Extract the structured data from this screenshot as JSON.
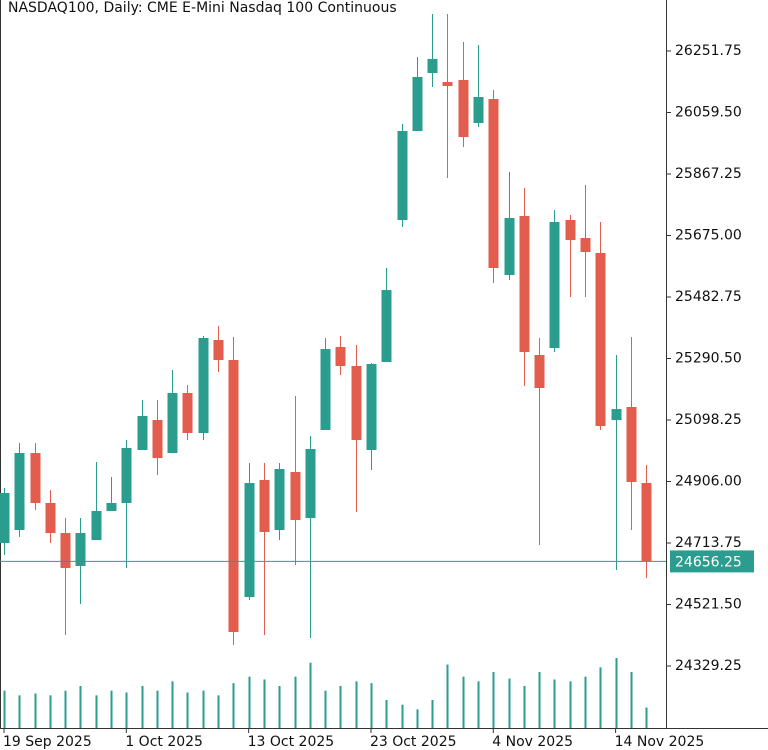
{
  "chart_data": {
    "type": "candlestick",
    "title": "NASDAQ100, Daily:  CME E-Mini Nasdaq 100 Continuous",
    "categories": [
      "19 Sep 2025",
      null,
      null,
      null,
      null,
      null,
      null,
      null,
      "1 Oct 2025",
      null,
      null,
      null,
      null,
      null,
      null,
      null,
      "13 Oct 2025",
      null,
      null,
      null,
      null,
      null,
      null,
      null,
      "23 Oct 2025",
      null,
      null,
      null,
      null,
      null,
      null,
      null,
      "4 Nov 2025",
      null,
      null,
      null,
      null,
      null,
      null,
      null,
      "14 Nov 2025",
      null,
      null
    ],
    "open": [
      24713.8,
      24754.4,
      24995.1,
      24838.8,
      24745.0,
      24641.9,
      24723.2,
      24813.8,
      24838.8,
      25004.5,
      25098.3,
      24995.1,
      25182.7,
      25057.6,
      25348.4,
      25285.8,
      24545.0,
      24910.7,
      24754.4,
      24935.7,
      24791.9,
      25067.0,
      25326.5,
      25267.1,
      25004.5,
      25279.6,
      25723.5,
      26001.7,
      26183.0,
      26154.9,
      26161.1,
      26026.7,
      26101.7,
      25551.5,
      25736.0,
      25301.5,
      25323.4,
      25723.5,
      25667.2,
      25620.3,
      25098.3,
      25138.9,
      24901.3
    ],
    "high": [
      24885.7,
      25026.4,
      25026.4,
      24879.5,
      24791.9,
      24791.9,
      24967.0,
      24920.1,
      25035.8,
      25160.8,
      25160.8,
      25254.6,
      25207.7,
      25360.9,
      25392.1,
      25357.7,
      24963.9,
      24963.9,
      24963.9,
      25173.3,
      25048.3,
      25354.6,
      25360.9,
      25332.7,
      25276.5,
      25573.4,
      26023.6,
      26233.0,
      26367.4,
      26367.4,
      26279.9,
      26270.5,
      26129.9,
      25873.5,
      25823.5,
      25354.6,
      25754.7,
      25739.1,
      25832.9,
      25717.2,
      25301.5,
      25357.7,
      24957.6
    ],
    "low": [
      24676.3,
      24732.5,
      24816.9,
      24713.8,
      24426.2,
      24523.1,
      24723.2,
      24813.8,
      24635.6,
      25004.5,
      24926.4,
      24995.1,
      25035.8,
      25035.8,
      25248.3,
      24394.9,
      24535.6,
      24426.2,
      24723.2,
      24645.0,
      24416.8,
      25067.0,
      25238.9,
      24810.7,
      24942.0,
      25279.6,
      25701.6,
      26001.7,
      26139.2,
      25854.8,
      25951.7,
      26014.2,
      25526.5,
      25535.9,
      25204.6,
      24707.5,
      25310.8,
      25482.8,
      25482.8,
      25067.0,
      24629.4,
      24754.4,
      24604.4
    ],
    "close": [
      24870.1,
      24995.1,
      24838.8,
      24745.0,
      24635.6,
      24745.0,
      24813.8,
      24838.8,
      25010.8,
      25110.8,
      24979.5,
      25182.7,
      25057.6,
      25354.6,
      25285.8,
      24435.6,
      24901.3,
      24748.2,
      24945.1,
      24785.7,
      25007.6,
      25320.2,
      25267.1,
      25035.8,
      25273.3,
      25504.5,
      26001.7,
      26170.5,
      26226.8,
      26142.4,
      25982.9,
      26108.0,
      25573.4,
      25729.7,
      25310.8,
      25198.3,
      25717.2,
      25660.9,
      25623.4,
      25079.5,
      25132.5,
      24904.5,
      24656.25
    ],
    "volume": [
      40,
      35,
      37,
      35,
      40,
      45,
      35,
      40,
      38,
      45,
      40,
      50,
      38,
      40,
      35,
      48,
      55,
      52,
      45,
      55,
      70,
      40,
      45,
      50,
      48,
      30,
      25,
      20,
      30,
      68,
      55,
      50,
      60,
      53,
      45,
      60,
      52,
      50,
      55,
      65,
      75,
      60,
      22
    ],
    "up_color": "#2a9d8f",
    "down_color": "#e35d4f",
    "last_price": 24656.25,
    "ylim": [
      24135.5,
      26411.2
    ],
    "yticks": [
      26251.75,
      {
        "value": 26059.5,
        "label": "26059.50"
      },
      25867.25,
      {
        "value": 25675,
        "label": "25675.00"
      },
      25482.75,
      {
        "value": 25290.5,
        "label": "25290.50"
      },
      25098.25,
      {
        "value": 24906,
        "label": "24906.00"
      },
      24713.75,
      {
        "value": 24521.5,
        "label": "24521.50"
      },
      24329.25
    ]
  }
}
